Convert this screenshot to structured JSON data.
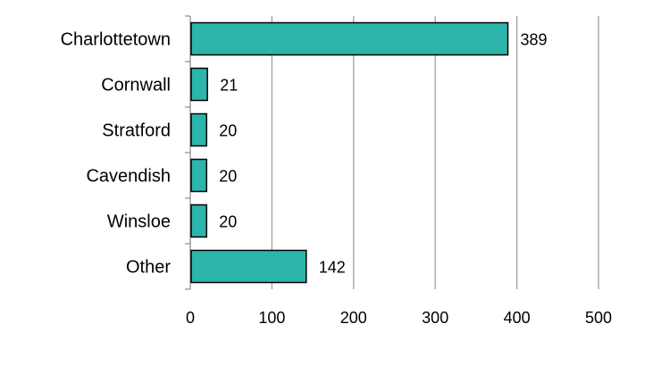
{
  "chart_data": {
    "type": "bar",
    "orientation": "horizontal",
    "categories": [
      "Charlottetown",
      "Cornwall",
      "Stratford",
      "Cavendish",
      "Winsloe",
      "Other"
    ],
    "values": [
      389,
      21,
      20,
      20,
      20,
      142
    ],
    "data_labels": [
      "389",
      "21",
      "20",
      "20",
      "20",
      "142"
    ],
    "xlim": [
      0,
      500
    ],
    "x_ticks": [
      0,
      100,
      200,
      300,
      400,
      500
    ],
    "x_tick_labels": [
      "0",
      "100",
      "200",
      "300",
      "400",
      "500"
    ],
    "grid": "vertical",
    "legend": "none",
    "title": "",
    "xlabel": "",
    "ylabel": ""
  },
  "colors": {
    "bar_fill": "#2cb5aa",
    "bar_stroke": "#000000",
    "gridline": "#9a9a9a",
    "axis": "#888888",
    "text": "#000000"
  }
}
